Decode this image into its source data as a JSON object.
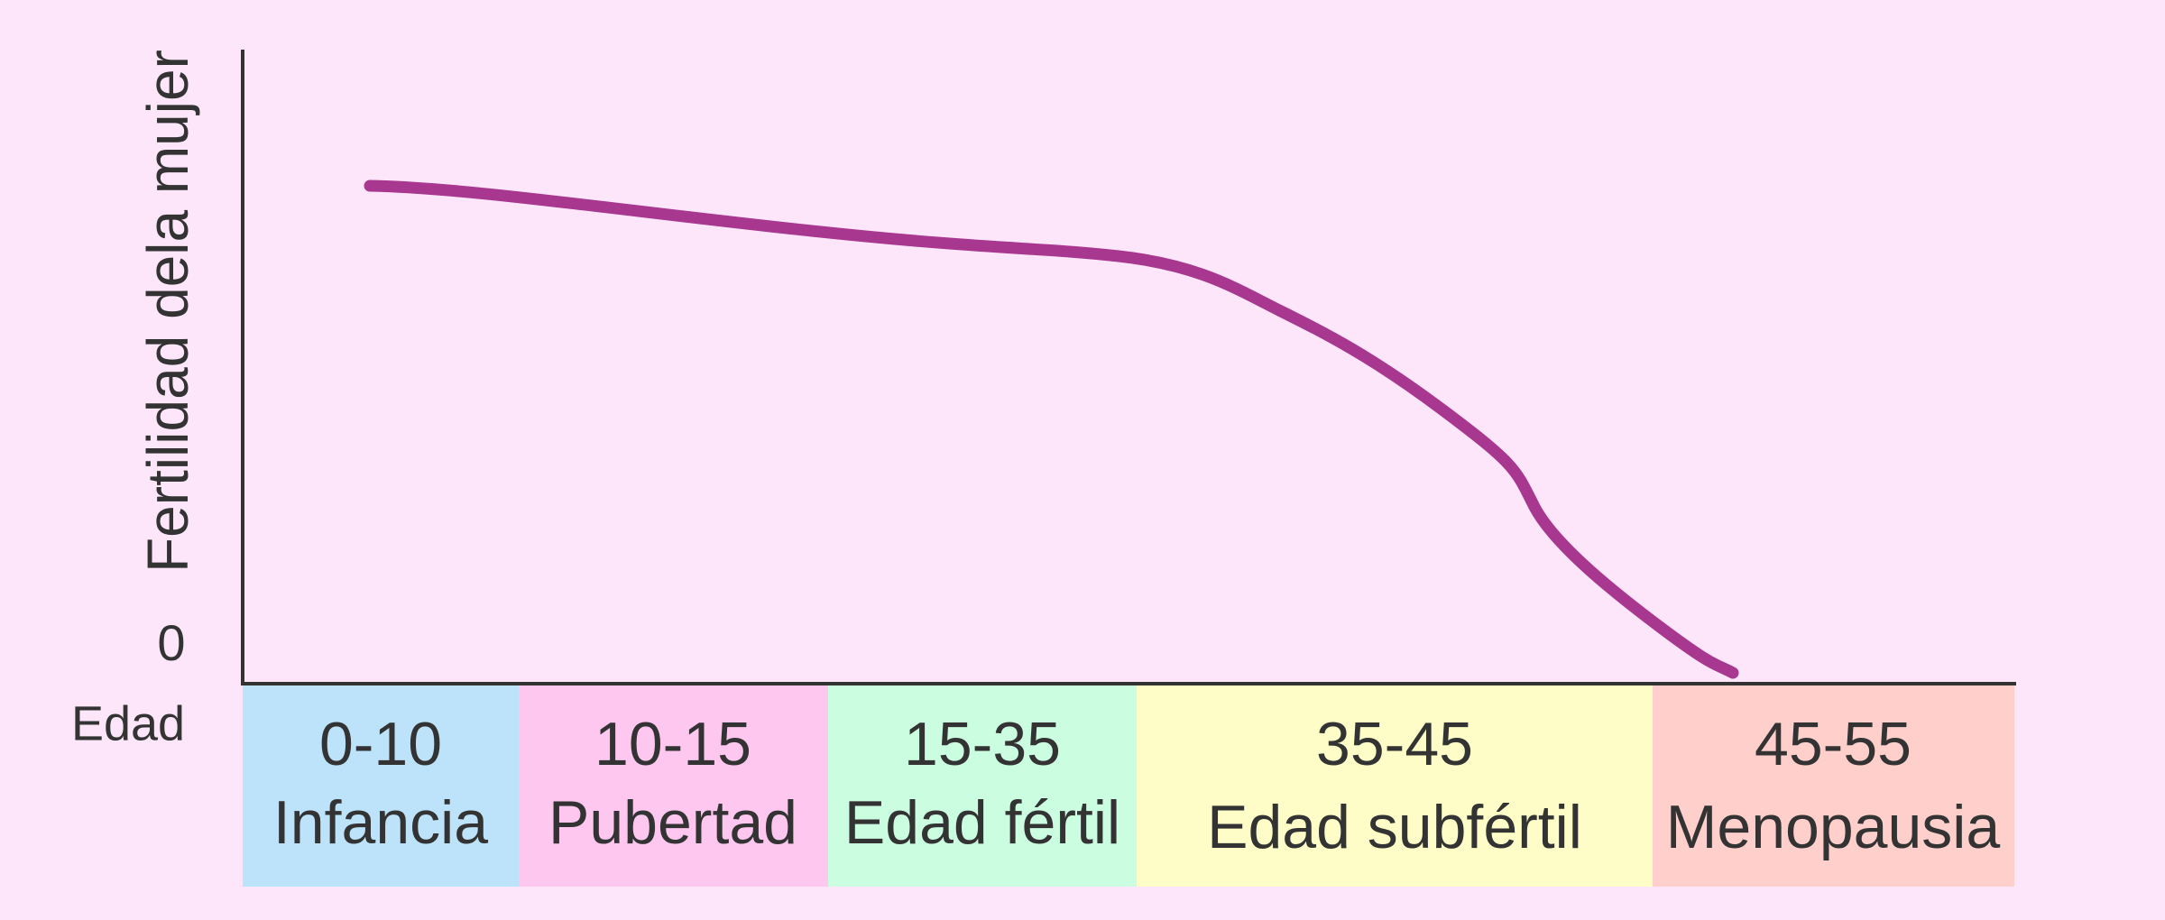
{
  "y_axis": {
    "label": "Fertilidad dela mujer",
    "zero_label": "0"
  },
  "x_axis": {
    "label": "Edad"
  },
  "stages": [
    {
      "range": "0-10",
      "name": "Infancia"
    },
    {
      "range": "10-15",
      "name": "Pubertad"
    },
    {
      "range": "15-35",
      "name": "Edad fértil"
    },
    {
      "range": "35-45",
      "name": "Edad subfértil"
    },
    {
      "range": "45-55",
      "name": "Menopausia"
    }
  ]
}
